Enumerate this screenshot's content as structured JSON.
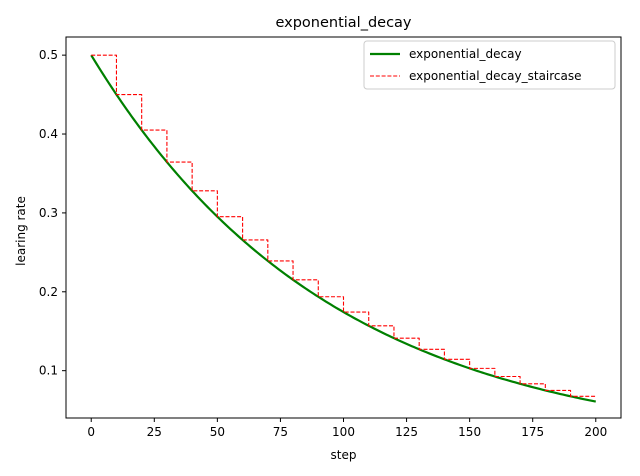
{
  "chart_data": {
    "type": "line",
    "title": "exponential_decay",
    "xlabel": "step",
    "ylabel": "learing rate",
    "xlim": [
      -10,
      210
    ],
    "ylim": [
      0.04,
      0.523
    ],
    "xticks": [
      0,
      25,
      50,
      75,
      100,
      125,
      150,
      175,
      200
    ],
    "xtick_labels": [
      "0",
      "25",
      "50",
      "75",
      "100",
      "125",
      "150",
      "175",
      "200"
    ],
    "yticks": [
      0.1,
      0.2,
      0.3,
      0.4,
      0.5
    ],
    "ytick_labels": [
      "0.1",
      "0.2",
      "0.3",
      "0.4",
      "0.5"
    ],
    "grid": false,
    "legend_position": "top-right",
    "series": [
      {
        "name": "exponential_decay",
        "color": "#008000",
        "style": "solid",
        "x": [
          0,
          10,
          20,
          30,
          40,
          50,
          60,
          70,
          80,
          90,
          100,
          110,
          120,
          130,
          140,
          150,
          160,
          170,
          180,
          190,
          200
        ],
        "y": [
          0.5,
          0.45,
          0.405,
          0.3645,
          0.328,
          0.2952,
          0.2657,
          0.2391,
          0.2152,
          0.1937,
          0.1743,
          0.1569,
          0.1412,
          0.1271,
          0.1144,
          0.1029,
          0.0926,
          0.0834,
          0.075,
          0.0675,
          0.0608
        ]
      },
      {
        "name": "exponential_decay_staircase",
        "color": "#ff0000",
        "style": "dashed",
        "x": [
          0,
          10,
          20,
          30,
          40,
          50,
          60,
          70,
          80,
          90,
          100,
          110,
          120,
          130,
          140,
          150,
          160,
          170,
          180,
          190,
          200
        ],
        "y": [
          0.5,
          0.45,
          0.405,
          0.3645,
          0.328,
          0.2952,
          0.2657,
          0.2391,
          0.2152,
          0.1937,
          0.1743,
          0.1569,
          0.1412,
          0.1271,
          0.1144,
          0.1029,
          0.0926,
          0.0834,
          0.075,
          0.0675,
          0.0675
        ]
      }
    ]
  }
}
